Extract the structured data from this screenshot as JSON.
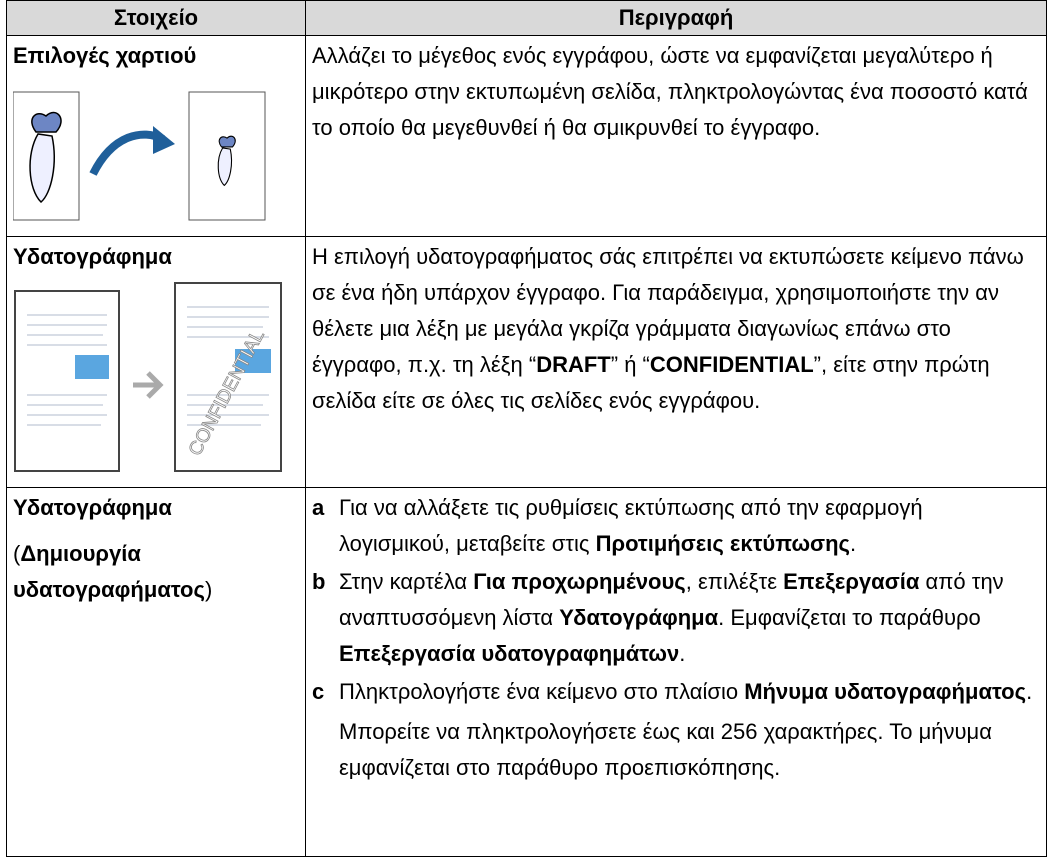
{
  "table": {
    "headers": [
      "Στοιχείο",
      "Περιγραφή"
    ],
    "rows": [
      {
        "item": "Επιλογές χαρτιού",
        "description": [
          {
            "text": "Αλλάζει το μέγεθος ενός εγγράφου, ώστε να εμφανίζεται μεγαλύτερο ή μικρότερο στην εκτυπωμένη σελίδα, πληκτρολογώντας ένα ποσοστό κατά το οποίο θα μεγεθυνθεί ή θα σμικρυνθεί το έγγραφο."
          }
        ]
      },
      {
        "item": "Υδατογράφημα",
        "image_text": "CONFIDENTIAL",
        "description": [
          {
            "text": "Η επιλογή υδατογραφήματος σάς επιτρέπει να εκτυπώσετε κείμενο πάνω σε ένα ήδη υπάρχον έγγραφο. Για παράδειγμα, χρησιμοποιήστε την αν θέλετε μια λέξη με μεγάλα γκρίζα γράμματα διαγωνίως επάνω στο έγγραφο, π.χ. τη λέξη “"
          },
          {
            "text": "DRAFT",
            "bold": true
          },
          {
            "text": "” ή “"
          },
          {
            "text": "CONFIDENTIAL",
            "bold": true
          },
          {
            "text": "”, είτε στην πρώτη σελίδα είτε σε όλες τις σελίδες ενός εγγράφου."
          }
        ]
      },
      {
        "item": "Υδατογράφημα",
        "item_note": [
          {
            "text": "("
          },
          {
            "text": "Δημιουργία υδατογραφήματος",
            "bold": true
          },
          {
            "text": ")"
          }
        ],
        "steps": [
          {
            "label": "a",
            "segments": [
              {
                "text": "Για να αλλάξετε τις ρυθμίσεις εκτύπωσης από την εφαρμογή λογισμικού, μεταβείτε στις "
              },
              {
                "text": "Προτιμήσεις εκτύπωσης",
                "bold": true
              },
              {
                "text": "."
              }
            ]
          },
          {
            "label": "b",
            "segments": [
              {
                "text": "Στην καρτέλα "
              },
              {
                "text": "Για προχωρημένους",
                "bold": true
              },
              {
                "text": ", επιλέξτε "
              },
              {
                "text": "Επεξεργασία",
                "bold": true
              },
              {
                "text": " από την αναπτυσσόμενη λίστα "
              },
              {
                "text": "Υδατογράφημα",
                "bold": true
              },
              {
                "text": ". Εμφανίζεται το παράθυρο "
              },
              {
                "text": "Επεξεργασία υδατογραφημάτων",
                "bold": true
              },
              {
                "text": "."
              }
            ]
          },
          {
            "label": "c",
            "segments": [
              {
                "text": "Πληκτρολογήστε ένα κείμενο στο πλαίσιο "
              },
              {
                "text": "Μήνυμα υδατογραφήματος",
                "bold": true
              },
              {
                "text": "."
              }
            ],
            "note": "Μπορείτε να πληκτρολογήσετε έως και 256 χαρακτήρες. Το μήνυμα εμφανίζεται στο παράθυρο προεπισκόπησης."
          }
        ]
      }
    ]
  }
}
